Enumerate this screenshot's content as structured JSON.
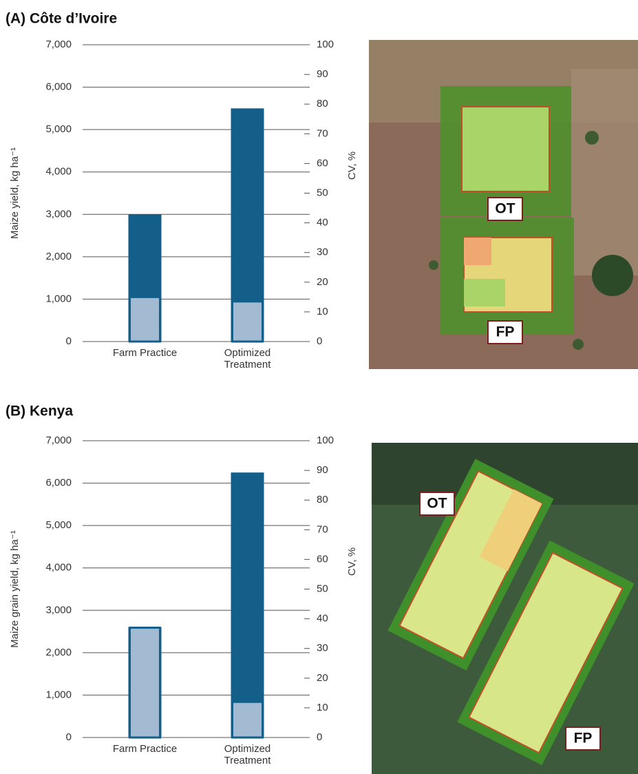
{
  "chart_data": [
    {
      "type": "bar",
      "title": "(A) Côte d’Ivoire",
      "categories": [
        "Farm Practice",
        "Optimized\nTreatment"
      ],
      "ylabel": "Maize yield, kg ha⁻¹",
      "y2label": "CV, %",
      "ylim": [
        0,
        7000
      ],
      "yticks": [
        0,
        {
          "value": 1000,
          "label": "1,000"
        },
        {
          "value": 2000,
          "label": "2,000"
        },
        {
          "value": 3000,
          "label": "3,000"
        },
        {
          "value": 4000,
          "label": "4,000"
        },
        {
          "value": 5000,
          "label": "5,000"
        },
        {
          "value": 6000,
          "label": "6,000"
        },
        {
          "value": 7000,
          "label": "7,000"
        }
      ],
      "y2lim": [
        0,
        100
      ],
      "y2ticks": [
        0,
        10,
        20,
        30,
        40,
        50,
        60,
        70,
        80,
        90,
        100
      ],
      "grid": true,
      "series": [
        {
          "color": "#135f8a",
          "values": [
            3000,
            5500
          ]
        },
        {
          "color": "#a3bad3",
          "axis": "y2",
          "values": [
            15,
            13.5
          ]
        }
      ]
    },
    {
      "type": "bar",
      "title": "(B) Kenya",
      "categories": [
        "Farm Practice",
        "Optimized\nTreatment"
      ],
      "ylabel": "Maize grain yield, kg ha⁻¹",
      "y2label": "CV, %",
      "ylim": [
        0,
        7000
      ],
      "yticks": [
        0,
        {
          "value": 1000,
          "label": "1,000"
        },
        {
          "value": 2000,
          "label": "2,000"
        },
        {
          "value": 3000,
          "label": "3,000"
        },
        {
          "value": 4000,
          "label": "4,000"
        },
        {
          "value": 5000,
          "label": "5,000"
        },
        {
          "value": 6000,
          "label": "6,000"
        },
        {
          "value": 7000,
          "label": "7,000"
        }
      ],
      "y2lim": [
        0,
        100
      ],
      "y2ticks": [
        0,
        10,
        20,
        30,
        40,
        50,
        60,
        70,
        80,
        90,
        100
      ],
      "grid": true,
      "series": [
        {
          "color": "#135f8a",
          "values": [
            2600,
            6250
          ]
        },
        {
          "color": "#a3bad3",
          "axis": "y2",
          "values": [
            37,
            12
          ]
        }
      ]
    }
  ],
  "images": [
    {
      "labels": [
        "OT",
        "FP"
      ]
    },
    {
      "labels": [
        "OT",
        "FP"
      ]
    }
  ]
}
